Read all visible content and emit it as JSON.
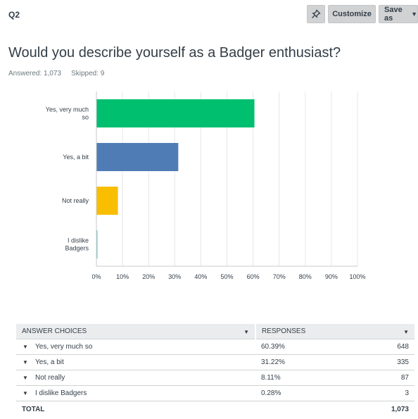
{
  "question": {
    "number": "Q2",
    "title": "Would you describe yourself as a Badger enthusiast?",
    "answered": "Answered: 1,073",
    "skipped": "Skipped: 9"
  },
  "toolbar": {
    "pin_icon": "pin-icon",
    "customize_label": "Customize",
    "save_as_label": "Save as"
  },
  "chart_data": {
    "type": "bar",
    "orientation": "horizontal",
    "categories": [
      "Yes, very much so",
      "Yes, a bit",
      "Not really",
      "I dislike Badgers"
    ],
    "values": [
      60.39,
      31.22,
      8.11,
      0.28
    ],
    "colors": [
      "#00bf6f",
      "#507cb6",
      "#f9be00",
      "#6bc8cd"
    ],
    "xlim": [
      0,
      100
    ],
    "xticks": [
      "0%",
      "10%",
      "20%",
      "30%",
      "40%",
      "50%",
      "60%",
      "70%",
      "80%",
      "90%",
      "100%"
    ],
    "grid": true
  },
  "table": {
    "headers": {
      "choice": "ANSWER CHOICES",
      "responses": "RESPONSES"
    },
    "rows": [
      {
        "choice": "Yes, very much so",
        "percent": "60.39%",
        "count": "648"
      },
      {
        "choice": "Yes, a bit",
        "percent": "31.22%",
        "count": "335"
      },
      {
        "choice": "Not really",
        "percent": "8.11%",
        "count": "87"
      },
      {
        "choice": "I dislike Badgers",
        "percent": "0.28%",
        "count": "3"
      }
    ],
    "total_label": "TOTAL",
    "total_count": "1,073"
  }
}
